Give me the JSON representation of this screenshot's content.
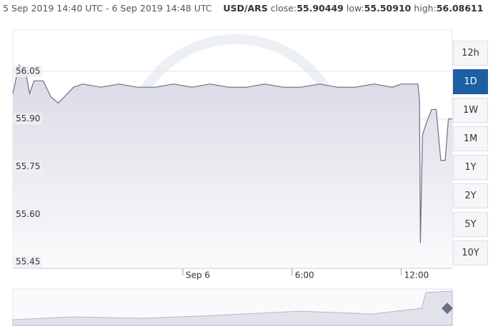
{
  "header": {
    "range": "5 Sep 2019 14:40 UTC - 6 Sep 2019 14:48 UTC",
    "pair": "USD/ARS",
    "close_label": "close:",
    "close": "55.90449",
    "low_label": "low:",
    "low": "55.50910",
    "high_label": "high:",
    "high": "56.08611"
  },
  "range_buttons": [
    "12h",
    "1D",
    "1W",
    "1M",
    "1Y",
    "2Y",
    "5Y",
    "10Y"
  ],
  "active_button": "1D",
  "chart_data": {
    "type": "area",
    "color": "#6b6f86",
    "x": [
      "2019-09-05T14:40",
      "2019-09-05T15:00",
      "2019-09-05T15:20",
      "2019-09-05T15:35",
      "2019-09-05T15:50",
      "2019-09-05T16:20",
      "2019-09-05T16:45",
      "2019-09-05T17:10",
      "2019-09-05T17:30",
      "2019-09-05T18:00",
      "2019-09-05T18:30",
      "2019-09-05T19:30",
      "2019-09-05T20:30",
      "2019-09-05T21:30",
      "2019-09-05T22:30",
      "2019-09-05T23:30",
      "2019-09-06T00:30",
      "2019-09-06T01:30",
      "2019-09-06T02:30",
      "2019-09-06T03:30",
      "2019-09-06T04:30",
      "2019-09-06T05:30",
      "2019-09-06T06:30",
      "2019-09-06T07:30",
      "2019-09-06T08:30",
      "2019-09-06T09:30",
      "2019-09-06T10:30",
      "2019-09-06T11:30",
      "2019-09-06T12:00",
      "2019-09-06T12:30",
      "2019-09-06T12:55",
      "2019-09-06T13:00",
      "2019-09-06T13:03",
      "2019-09-06T13:10",
      "2019-09-06T13:20",
      "2019-09-06T13:40",
      "2019-09-06T13:55",
      "2019-09-06T14:10",
      "2019-09-06T14:25",
      "2019-09-06T14:35",
      "2019-09-06T14:48"
    ],
    "values": [
      55.98,
      56.07,
      56.06,
      55.98,
      56.02,
      56.02,
      55.97,
      55.95,
      55.97,
      56.0,
      56.01,
      56.0,
      56.01,
      56.0,
      56.0,
      56.01,
      56.0,
      56.01,
      56.0,
      56.0,
      56.01,
      56.0,
      56.0,
      56.01,
      56.0,
      56.0,
      56.01,
      56.0,
      56.01,
      56.01,
      56.01,
      55.96,
      55.51,
      55.85,
      55.88,
      55.93,
      55.93,
      55.77,
      55.77,
      55.9,
      55.9
    ],
    "xlim": [
      "2019-09-05T14:40",
      "2019-09-06T14:48"
    ],
    "xticks": [
      {
        "value": "2019-09-06T00:00",
        "label": "Sep 6"
      },
      {
        "value": "2019-09-06T06:00",
        "label": "6:00"
      },
      {
        "value": "2019-09-06T12:00",
        "label": "12:00"
      }
    ],
    "ylim": [
      55.43,
      56.18
    ],
    "yticks": [
      55.45,
      {
        "value": 55.6,
        "label": "55.60"
      },
      55.75,
      {
        "value": 55.9,
        "label": "55.90"
      },
      56.05
    ],
    "grid": true
  }
}
